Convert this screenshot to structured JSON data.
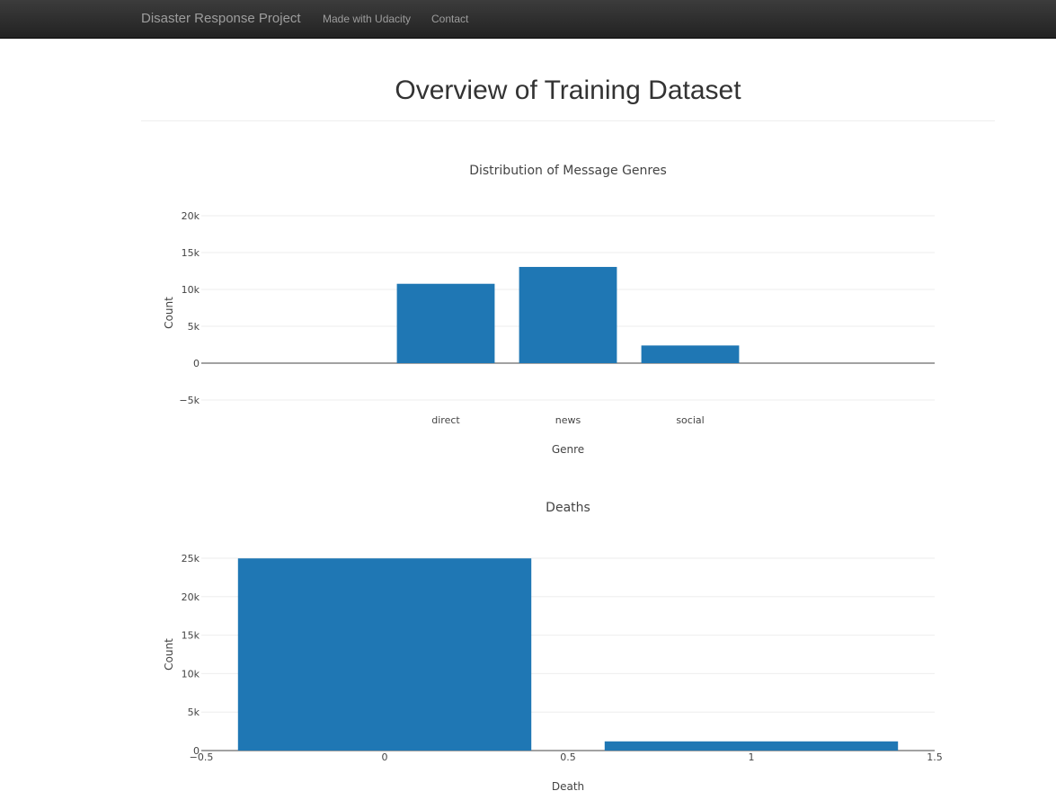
{
  "navbar": {
    "brand": "Disaster Response Project",
    "links": [
      {
        "label": "Made with Udacity"
      },
      {
        "label": "Contact"
      }
    ]
  },
  "page": {
    "title": "Overview of Training Dataset"
  },
  "colors": {
    "bar": "#1f77b4",
    "navbar": "#222222"
  },
  "chart_data": [
    {
      "type": "bar",
      "title": "Distribution of Message Genres",
      "xlabel": "Genre",
      "ylabel": "Count",
      "categories": [
        "direct",
        "news",
        "social"
      ],
      "values": [
        10766,
        13054,
        2396
      ],
      "ylim": [
        -5000,
        20000
      ],
      "yticks": [
        -5000,
        0,
        5000,
        10000,
        15000,
        20000
      ],
      "ytick_labels": [
        "−5k",
        "0",
        "5k",
        "10k",
        "15k",
        "20k"
      ],
      "grid": true
    },
    {
      "type": "bar",
      "title": "Deaths",
      "xlabel": "Death",
      "ylabel": "Count",
      "x": [
        0,
        1
      ],
      "values": [
        24975,
        1194
      ],
      "xlim": [
        -0.5,
        1.5
      ],
      "xticks": [
        -0.5,
        0,
        0.5,
        1,
        1.5
      ],
      "xtick_labels": [
        "−0.5",
        "0",
        "0.5",
        "1",
        "1.5"
      ],
      "ylim": [
        0,
        25000
      ],
      "yticks": [
        0,
        5000,
        10000,
        15000,
        20000,
        25000
      ],
      "ytick_labels": [
        "0",
        "5k",
        "10k",
        "15k",
        "20k",
        "25k"
      ],
      "grid": true
    }
  ]
}
